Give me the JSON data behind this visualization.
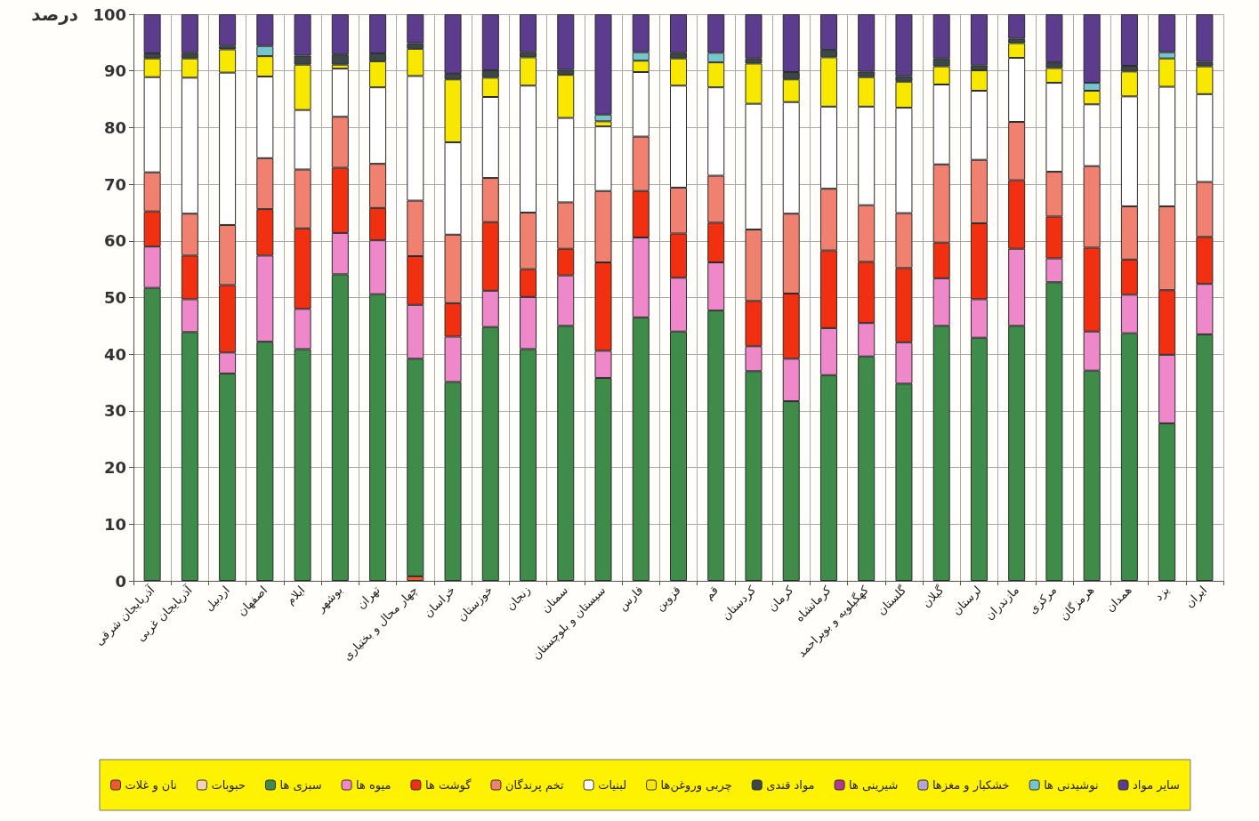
{
  "chart_data": {
    "type": "bar",
    "stacked": true,
    "ylabel": "درصد",
    "categories": [
      "آذربایجان شرقی",
      "آذربایجان غربی",
      "اردبیل",
      "اصفهان",
      "ایلام",
      "بوشهر",
      "تهران",
      "چهار محال و بختیاری",
      "خراسان",
      "خوزستان",
      "زنجان",
      "سمنان",
      "سیستان و بلوچستان",
      "فارس",
      "قزوین",
      "قم",
      "کردستان",
      "کرمان",
      "کرمانشاه",
      "کهگیلویه و بویراحمد",
      "گلستان",
      "گیلان",
      "لرستان",
      "مازندران",
      "مرکزی",
      "هرمزگان",
      "همدان",
      "یزد",
      "ایران"
    ],
    "series": [
      {
        "name": "نان و غلات",
        "color": "#f05a28",
        "values": [
          null,
          null,
          null,
          null,
          null,
          null,
          null,
          0.8,
          null,
          null,
          null,
          null,
          null,
          null,
          null,
          null,
          null,
          null,
          null,
          null,
          null,
          null,
          null,
          null,
          null,
          null,
          null,
          null,
          null
        ]
      },
      {
        "name": "حبوبات",
        "color": "#f6d2b4",
        "values": [
          null,
          null,
          null,
          null,
          null,
          null,
          null,
          null,
          null,
          null,
          null,
          null,
          null,
          null,
          null,
          null,
          null,
          null,
          null,
          null,
          null,
          null,
          null,
          null,
          null,
          null,
          null,
          null,
          null
        ]
      },
      {
        "name": "سبزی ها",
        "color": "#3f8c4a",
        "values": [
          51.7,
          43.9,
          36.6,
          42.2,
          40.9,
          54.1,
          50.6,
          38.4,
          35.1,
          44.8,
          40.9,
          45.0,
          35.8,
          46.5,
          44.0,
          47.7,
          37.0,
          31.7,
          36.3,
          39.6,
          34.8,
          45.0,
          42.9,
          45.0,
          52.7,
          37.1,
          43.7,
          27.8,
          43.5
        ]
      },
      {
        "name": "میوه ها",
        "color": "#ee88c8",
        "values": [
          7.3,
          5.8,
          3.7,
          15.2,
          7.1,
          7.3,
          9.5,
          9.5,
          8.0,
          6.4,
          9.2,
          8.9,
          4.8,
          14.1,
          9.5,
          8.5,
          4.4,
          7.5,
          8.3,
          5.9,
          7.3,
          8.4,
          6.8,
          13.6,
          4.2,
          6.9,
          6.8,
          12.1,
          8.9
        ]
      },
      {
        "name": "گوشت ها",
        "color": "#f03010",
        "values": [
          6.2,
          7.7,
          11.9,
          8.2,
          14.2,
          11.5,
          5.7,
          8.6,
          5.9,
          12.1,
          4.9,
          4.7,
          15.6,
          8.2,
          7.8,
          7.0,
          8.0,
          11.5,
          13.7,
          10.8,
          13.1,
          6.3,
          13.4,
          12.1,
          7.4,
          14.8,
          6.2,
          11.4,
          8.3
        ]
      },
      {
        "name": "تخم پرندگان",
        "color": "#f08070",
        "values": [
          6.9,
          7.4,
          10.6,
          9.0,
          10.4,
          9.0,
          7.8,
          9.8,
          12.1,
          7.8,
          10.0,
          8.2,
          12.6,
          9.6,
          8.1,
          8.3,
          12.6,
          14.1,
          10.9,
          10.0,
          9.7,
          13.8,
          11.2,
          10.3,
          7.9,
          14.4,
          9.4,
          14.8,
          9.7
        ]
      },
      {
        "name": "لبنیات",
        "color": "#ffffff",
        "values": [
          16.8,
          24.0,
          26.9,
          14.4,
          10.5,
          8.5,
          13.5,
          22.0,
          16.3,
          14.3,
          22.4,
          14.9,
          11.4,
          11.4,
          18.0,
          15.6,
          22.2,
          19.7,
          14.5,
          17.4,
          18.6,
          14.1,
          12.2,
          11.3,
          15.7,
          10.9,
          19.4,
          21.1,
          15.5
        ]
      },
      {
        "name": "چربی وروغن‌ها",
        "color": "#f8e800",
        "values": [
          3.3,
          3.4,
          4.1,
          3.6,
          8.0,
          0.7,
          4.6,
          4.8,
          11.1,
          3.4,
          5.0,
          7.6,
          0.9,
          2.0,
          4.8,
          4.4,
          7.1,
          4.0,
          8.7,
          5.2,
          4.6,
          3.2,
          3.6,
          2.6,
          2.6,
          2.4,
          4.4,
          5.0,
          4.9
        ]
      },
      {
        "name": "مواد قندی",
        "color": "#3c4848",
        "values": [
          0.9,
          1.0,
          0.6,
          null,
          1.6,
          1.8,
          1.4,
          1.0,
          1.0,
          1.3,
          0.9,
          0.9,
          null,
          null,
          1.0,
          null,
          0.9,
          1.3,
          1.3,
          1.0,
          1.0,
          1.4,
          0.9,
          0.8,
          1.0,
          null,
          1.0,
          null,
          0.8
        ]
      },
      {
        "name": "شیرینی ها",
        "color": "#b03890",
        "values": [
          null,
          null,
          null,
          null,
          null,
          null,
          null,
          null,
          null,
          null,
          null,
          null,
          null,
          null,
          null,
          null,
          null,
          null,
          null,
          null,
          null,
          null,
          null,
          null,
          null,
          null,
          null,
          null,
          null
        ]
      },
      {
        "name": "خشکبار و مغزها",
        "color": "#b4a4d4",
        "values": [
          null,
          null,
          null,
          null,
          null,
          null,
          null,
          null,
          null,
          null,
          null,
          null,
          null,
          null,
          null,
          null,
          null,
          null,
          null,
          null,
          null,
          null,
          null,
          null,
          null,
          null,
          null,
          null,
          null
        ]
      },
      {
        "name": "نوشیدنی ها",
        "color": "#78c4cc",
        "values": [
          null,
          null,
          null,
          1.8,
          null,
          null,
          null,
          null,
          null,
          null,
          null,
          null,
          1.2,
          1.5,
          null,
          1.7,
          null,
          null,
          null,
          null,
          null,
          null,
          null,
          null,
          null,
          1.4,
          null,
          1.1,
          null
        ]
      },
      {
        "name": "سایر مواد",
        "color": "#5c3c8c",
        "values": [
          6.9,
          6.8,
          5.6,
          5.6,
          7.3,
          7.1,
          6.9,
          5.1,
          10.5,
          9.9,
          6.7,
          9.8,
          17.7,
          6.7,
          6.8,
          6.8,
          7.8,
          10.2,
          6.3,
          10.1,
          10.9,
          7.8,
          9.0,
          4.3,
          8.5,
          12.1,
          9.1,
          6.7,
          8.4
        ]
      }
    ],
    "ylim": [
      0,
      100
    ],
    "yticks": [
      0,
      10,
      20,
      30,
      40,
      50,
      60,
      70,
      80,
      90,
      100
    ],
    "grid": true,
    "legend": "bottom"
  }
}
